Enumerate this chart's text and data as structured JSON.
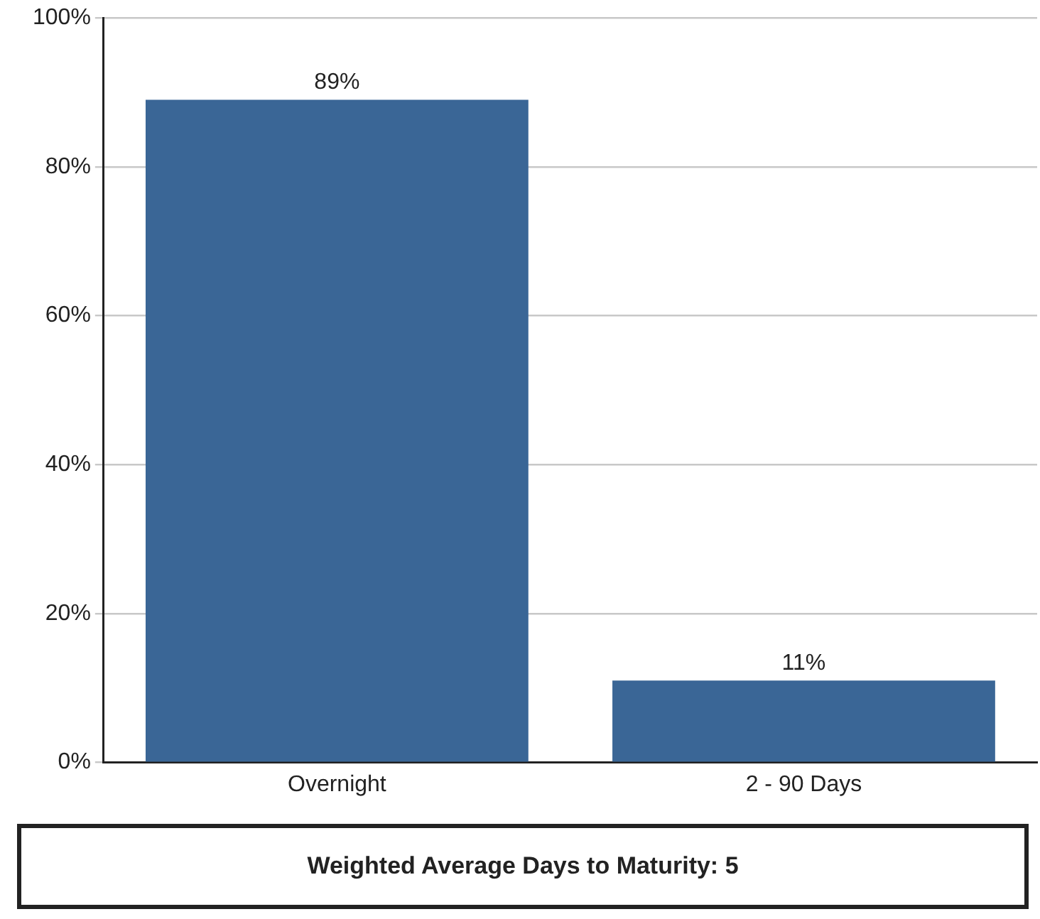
{
  "chart_data": {
    "type": "bar",
    "categories": [
      "Overnight",
      "2 - 90 Days"
    ],
    "values": [
      89,
      11
    ],
    "value_labels": [
      "89%",
      "11%"
    ],
    "color": "#3a6696",
    "ylim": [
      0,
      100
    ],
    "yticks": [
      {
        "value": 0,
        "label": "0%"
      },
      {
        "value": 20,
        "label": "20%"
      },
      {
        "value": 40,
        "label": "40%"
      },
      {
        "value": 60,
        "label": "60%"
      },
      {
        "value": 80,
        "label": "80%"
      },
      {
        "value": 100,
        "label": "100%"
      }
    ],
    "grid": "y",
    "legend": false,
    "annotations": [
      "Weighted Average Days to Maturity:  5"
    ]
  }
}
